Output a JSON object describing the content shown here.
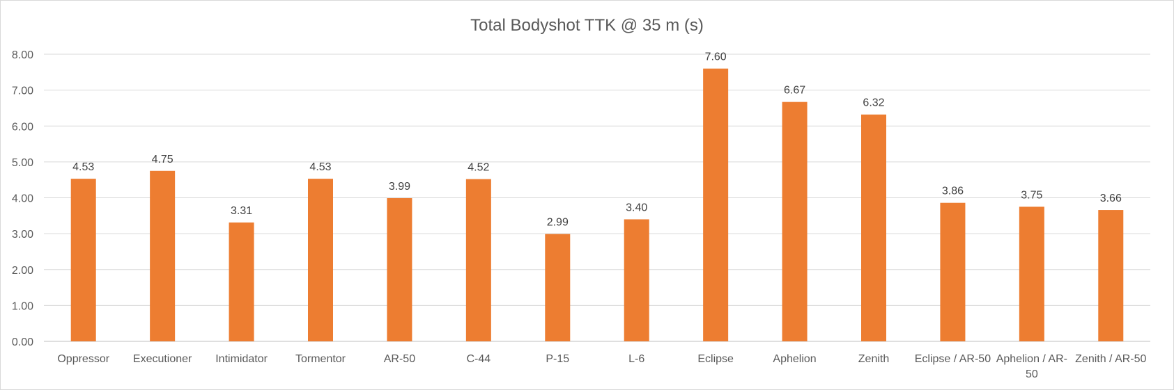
{
  "chart_data": {
    "type": "bar",
    "title": "Total Bodyshot TTK @ 35 m (s)",
    "xlabel": "",
    "ylabel": "",
    "ylim": [
      0,
      8
    ],
    "yticks": [
      "0.00",
      "1.00",
      "2.00",
      "3.00",
      "4.00",
      "5.00",
      "6.00",
      "7.00",
      "8.00"
    ],
    "grid": true,
    "legend": "none",
    "bar_color": "#ED7D31",
    "categories": [
      [
        "Oppressor"
      ],
      [
        "Executioner"
      ],
      [
        "Intimidator"
      ],
      [
        "Tormentor"
      ],
      [
        "AR-50"
      ],
      [
        "C-44"
      ],
      [
        "P-15"
      ],
      [
        "L-6"
      ],
      [
        "Eclipse"
      ],
      [
        "Aphelion"
      ],
      [
        "Zenith"
      ],
      [
        "Eclipse / AR-50"
      ],
      [
        "Aphelion / AR-",
        "50"
      ],
      [
        "Zenith / AR-50"
      ]
    ],
    "values": [
      4.53,
      4.75,
      3.31,
      4.53,
      3.99,
      4.52,
      2.99,
      3.4,
      7.6,
      6.67,
      6.32,
      3.86,
      3.75,
      3.66
    ],
    "data_labels": [
      "4.53",
      "4.75",
      "3.31",
      "4.53",
      "3.99",
      "4.52",
      "2.99",
      "3.40",
      "7.60",
      "6.67",
      "6.32",
      "3.86",
      "3.75",
      "3.66"
    ]
  }
}
